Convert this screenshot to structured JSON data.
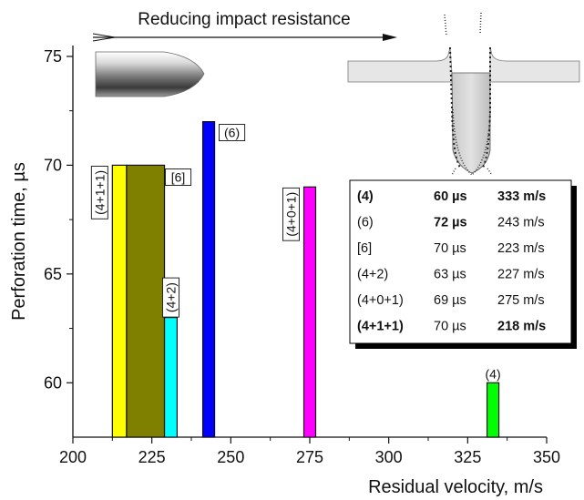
{
  "chart_data": {
    "type": "bar",
    "xlabel": "Residual velocity, m/s",
    "ylabel": "Perforation time, µs",
    "xlim": [
      200,
      350
    ],
    "ylim": [
      57.5,
      75.5
    ],
    "x_ticks": [
      200,
      225,
      250,
      275,
      300,
      325,
      350
    ],
    "y_ticks": [
      60,
      65,
      70,
      75
    ],
    "annotation_arrow": "Reducing impact resistance",
    "bars": [
      {
        "label": "(4+1+1)",
        "x": 218,
        "value": 70,
        "color": "#ffff00"
      },
      {
        "label": "[6]",
        "x": 223,
        "value": 70,
        "color": "#808000"
      },
      {
        "label": "(4+2)",
        "x": 227,
        "value": 63,
        "color": "#00ffff"
      },
      {
        "label": "(6)",
        "x": 243,
        "value": 72,
        "color": "#0000ff"
      },
      {
        "label": "(4+0+1)",
        "x": 275,
        "value": 69,
        "color": "#ff00ff"
      },
      {
        "label": "(4)",
        "x": 333,
        "value": 60,
        "color": "#00ff00"
      }
    ],
    "table": {
      "rows": [
        {
          "config": "(4)",
          "time": "60 µs",
          "velocity": "333 m/s",
          "bold": [
            true,
            true,
            true
          ]
        },
        {
          "config": "(6)",
          "time": "72 µs",
          "velocity": "243 m/s",
          "bold": [
            false,
            true,
            false
          ]
        },
        {
          "config": "[6]",
          "time": "70 µs",
          "velocity": "223 m/s",
          "bold": [
            false,
            false,
            false
          ]
        },
        {
          "config": "(4+2)",
          "time": "63 µs",
          "velocity": "227 m/s",
          "bold": [
            false,
            false,
            false
          ]
        },
        {
          "config": "(4+0+1)",
          "time": "69 µs",
          "velocity": "275 m/s",
          "bold": [
            false,
            false,
            false
          ]
        },
        {
          "config": "(4+1+1)",
          "time": "70 µs",
          "velocity": "218 m/s",
          "bold": [
            true,
            false,
            true
          ]
        }
      ]
    }
  }
}
